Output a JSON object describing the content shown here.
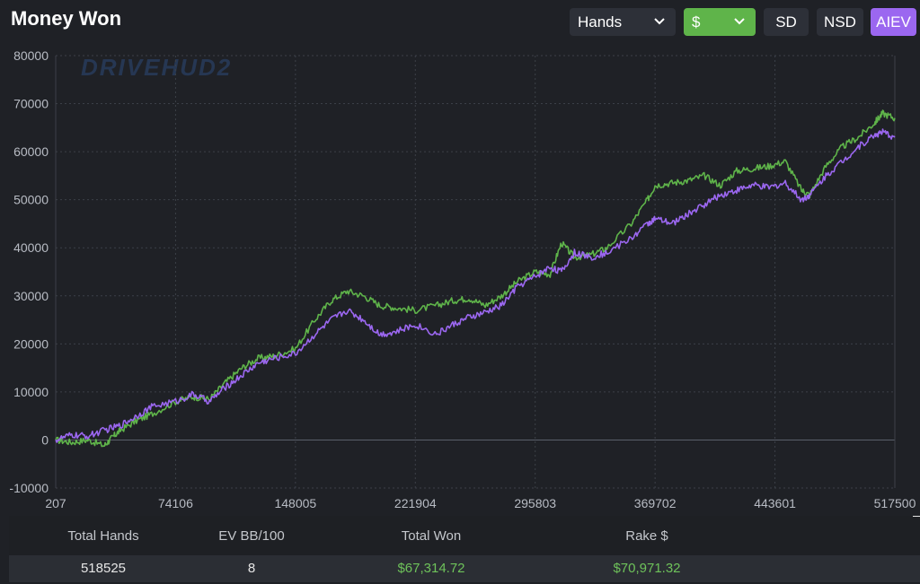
{
  "header": {
    "title": "Money Won"
  },
  "toolbar": {
    "xaxis_select": "Hands",
    "currency_select": "$",
    "sd_label": "SD",
    "nsd_label": "NSD",
    "aiev_label": "AIEV"
  },
  "watermark": "DRIVEHUD2",
  "colors": {
    "won_line": "#5fb44a",
    "aiev_line": "#9b67f0",
    "currency_active": "#5fb44a",
    "aiev_active": "#9b67f0"
  },
  "chart_data": {
    "type": "line",
    "title": "Money Won",
    "xlabel": "",
    "ylabel": "",
    "xlim": [
      207,
      517500
    ],
    "ylim": [
      -10000,
      80000
    ],
    "x_ticks": [
      207,
      74106,
      148005,
      221904,
      295803,
      369702,
      443601,
      517500
    ],
    "y_ticks": [
      -10000,
      0,
      10000,
      20000,
      30000,
      40000,
      50000,
      60000,
      70000,
      80000
    ],
    "grid": true,
    "legend": "none",
    "series": [
      {
        "color": "#5fb44a",
        "x": [
          207,
          10000,
          20000,
          30000,
          35000,
          40000,
          50000,
          60000,
          74106,
          85000,
          95000,
          105000,
          115000,
          125000,
          135000,
          148005,
          160000,
          170000,
          180000,
          190000,
          200000,
          210000,
          221904,
          235000,
          245000,
          255000,
          265000,
          275000,
          285000,
          295803,
          305000,
          312000,
          320000,
          330000,
          340000,
          355000,
          365000,
          369702,
          380000,
          390000,
          400000,
          410000,
          420000,
          430000,
          440000,
          450000,
          460000,
          465000,
          475000,
          485000,
          495000,
          505000,
          510000,
          517500
        ],
        "y": [
          0,
          -500,
          0,
          -1200,
          500,
          2000,
          4000,
          5500,
          8000,
          9000,
          8500,
          12000,
          15000,
          17000,
          17500,
          19000,
          25000,
          29000,
          31000,
          30000,
          28000,
          27500,
          27000,
          28000,
          29000,
          29500,
          28000,
          30000,
          33000,
          35000,
          34500,
          41000,
          38000,
          38500,
          40000,
          45000,
          50000,
          53000,
          53500,
          54000,
          55000,
          53000,
          56000,
          56500,
          57000,
          58000,
          52000,
          51000,
          57000,
          61000,
          63000,
          66000,
          68000,
          67000
        ]
      },
      {
        "color": "#9b67f0",
        "x": [
          207,
          10000,
          20000,
          30000,
          40000,
          50000,
          60000,
          74106,
          85000,
          95000,
          105000,
          115000,
          125000,
          135000,
          148005,
          160000,
          170000,
          180000,
          190000,
          200000,
          210000,
          221904,
          235000,
          245000,
          255000,
          265000,
          275000,
          285000,
          295803,
          305000,
          312000,
          320000,
          330000,
          340000,
          355000,
          365000,
          369702,
          380000,
          390000,
          400000,
          410000,
          420000,
          430000,
          440000,
          450000,
          460000,
          465000,
          475000,
          485000,
          495000,
          505000,
          510000,
          517500
        ],
        "y": [
          0,
          1000,
          800,
          2000,
          3000,
          5000,
          7000,
          8000,
          9500,
          8000,
          11000,
          13500,
          16000,
          17000,
          18000,
          22000,
          25000,
          27000,
          25000,
          22000,
          22500,
          24000,
          22000,
          24000,
          25500,
          26500,
          28000,
          32000,
          34000,
          36000,
          35000,
          39000,
          38000,
          39000,
          42000,
          45000,
          46000,
          45000,
          47000,
          49000,
          51000,
          52000,
          53000,
          52500,
          53500,
          50000,
          51000,
          55000,
          58000,
          61000,
          63500,
          64000,
          63000
        ]
      }
    ]
  },
  "summary": {
    "headers": [
      "Total Hands",
      "EV BB/100",
      "Total Won",
      "Rake $"
    ],
    "values": [
      "518525",
      "8",
      "$67,314.72",
      "$70,971.32"
    ]
  }
}
